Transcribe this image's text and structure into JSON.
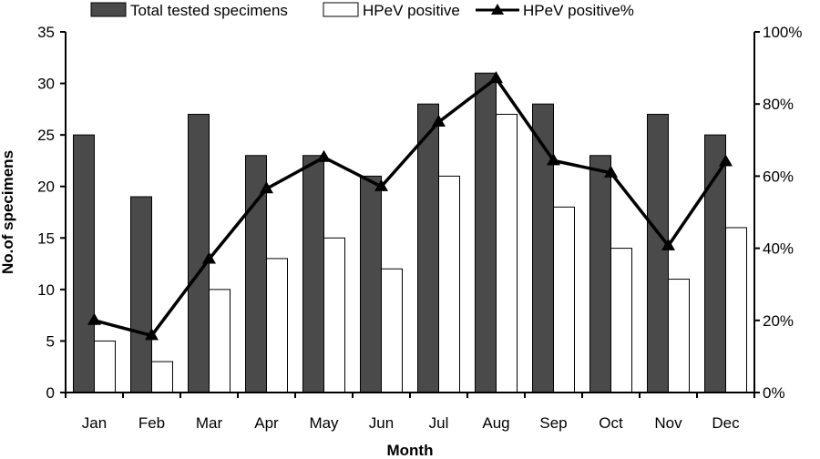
{
  "chart_data": {
    "type": "bar",
    "categories": [
      "Jan",
      "Feb",
      "Mar",
      "Apr",
      "May",
      "Jun",
      "Jul",
      "Aug",
      "Sep",
      "Oct",
      "Nov",
      "Dec"
    ],
    "series": [
      {
        "name": "Total tested specimens",
        "type": "bar",
        "axis": "left",
        "color": "#4a4a4a",
        "values": [
          25,
          19,
          27,
          23,
          23,
          21,
          28,
          31,
          28,
          23,
          27,
          25
        ]
      },
      {
        "name": "HPeV positive",
        "type": "bar",
        "axis": "left",
        "color": "#ffffff",
        "values": [
          5,
          3,
          10,
          13,
          15,
          12,
          21,
          27,
          18,
          14,
          11,
          16
        ]
      },
      {
        "name": "HPeV positive%",
        "type": "line",
        "axis": "right",
        "color": "#000000",
        "marker": "triangle",
        "values": [
          20,
          15.8,
          37,
          56.5,
          65.2,
          57.1,
          75,
          87.1,
          64.3,
          60.9,
          40.7,
          64
        ]
      }
    ],
    "xlabel": "Month",
    "ylabel": "No.of specimens",
    "ylim": [
      0,
      35
    ],
    "y_ticks": [
      "0",
      "5",
      "10",
      "15",
      "20",
      "25",
      "30",
      "35"
    ],
    "y2lim": [
      0,
      100
    ],
    "y2_ticks": [
      "0%",
      "20%",
      "40%",
      "60%",
      "80%",
      "100%"
    ],
    "grid": false,
    "legend_position": "top"
  }
}
